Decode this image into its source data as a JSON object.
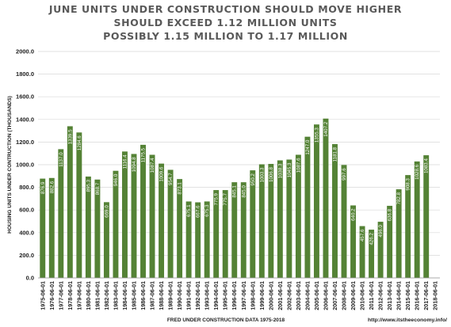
{
  "chart_data": {
    "type": "bar",
    "title_lines": [
      "JUNE UNITS UNDER CONSTRUCTION SHOULD MOVE HIGHER",
      "SHOULD EXCEED 1.12 MILLION UNITS",
      "POSSIBLY 1.15 MILLION TO 1.17 MILLION"
    ],
    "xlabel": "FRED UNDER CONSTRUCTION DATA 1975-2018",
    "ylabel": "HOUSING UNITS UNDER CONTRUCTION (THOUSANDS)",
    "source_text": "http://www.itstheeconomy.info/",
    "ylim": [
      0,
      2000
    ],
    "yticks": [
      "0.0",
      "200.0",
      "400.0",
      "600.0",
      "800.0",
      "1000.0",
      "1200.0",
      "1400.0",
      "1600.0",
      "1800.0",
      "2000.0"
    ],
    "bar_color": "#548235",
    "grid": true,
    "categories": [
      "1975-06-01",
      "1976-06-01",
      "1977-06-01",
      "1978-06-01",
      "1979-06-01",
      "1980-06-01",
      "1981-06-01",
      "1982-06-01",
      "1983-06-01",
      "1984-06-01",
      "1985-06-01",
      "1986-06-01",
      "1987-06-01",
      "1988-06-01",
      "1989-06-01",
      "1990-06-01",
      "1991-06-01",
      "1992-06-01",
      "1993-06-01",
      "1994-06-01",
      "1995-06-01",
      "1996-06-01",
      "1997-06-01",
      "1998-06-01",
      "1999-06-01",
      "2000-06-01",
      "2001-06-01",
      "2002-06-01",
      "2003-06-01",
      "2004-06-01",
      "2005-06-01",
      "2006-06-01",
      "2007-06-01",
      "2008-06-01",
      "2009-06-01",
      "2010-06-01",
      "2011-06-01",
      "2012-06-01",
      "2013-06-01",
      "2014-06-01",
      "2015-06-01",
      "2016-06-01",
      "2017-06-01",
      "2018-06-01"
    ],
    "values": [
      876.9,
      882.6,
      1137.0,
      1339.5,
      1284.6,
      895.3,
      868.7,
      669.0,
      946.0,
      1116.4,
      1094.8,
      1175.5,
      1087.4,
      1009.6,
      954.7,
      873.1,
      675.1,
      667.6,
      675.3,
      775.9,
      775.7,
      845.1,
      845.0,
      950.2,
      1003.3,
      1006.8,
      1038.3,
      1045.3,
      1087.6,
      1247.0,
      1355.3,
      1407.2,
      1181.8,
      997.6,
      640.2,
      457.6,
      426.2,
      496.0,
      636.8,
      782.8,
      908.3,
      1028.6,
      1083.4,
      null
    ],
    "labels": [
      "876.9",
      "882.6",
      "1137.0",
      "1339.5",
      "1284.6",
      "895.3",
      "868.7",
      "669.0",
      "946.0",
      "1116.4",
      "1094.8",
      "1175.5",
      "1087.4",
      "1009.6",
      "954.7",
      "873.1",
      "675.1",
      "667.6",
      "675.3",
      "775.9",
      "775.7",
      "845.1",
      "845.0",
      "950.2",
      "1003.3",
      "1006.8",
      "1038.3",
      "1045.3",
      "1087.6",
      "1247.0",
      "1355.3",
      "1407.2",
      "1181.8",
      "997.6",
      "640.2",
      "457.6",
      "426.2",
      "496.0",
      "636.8",
      "782.8",
      "908.3",
      "1028.6",
      "1083.4",
      ""
    ]
  }
}
